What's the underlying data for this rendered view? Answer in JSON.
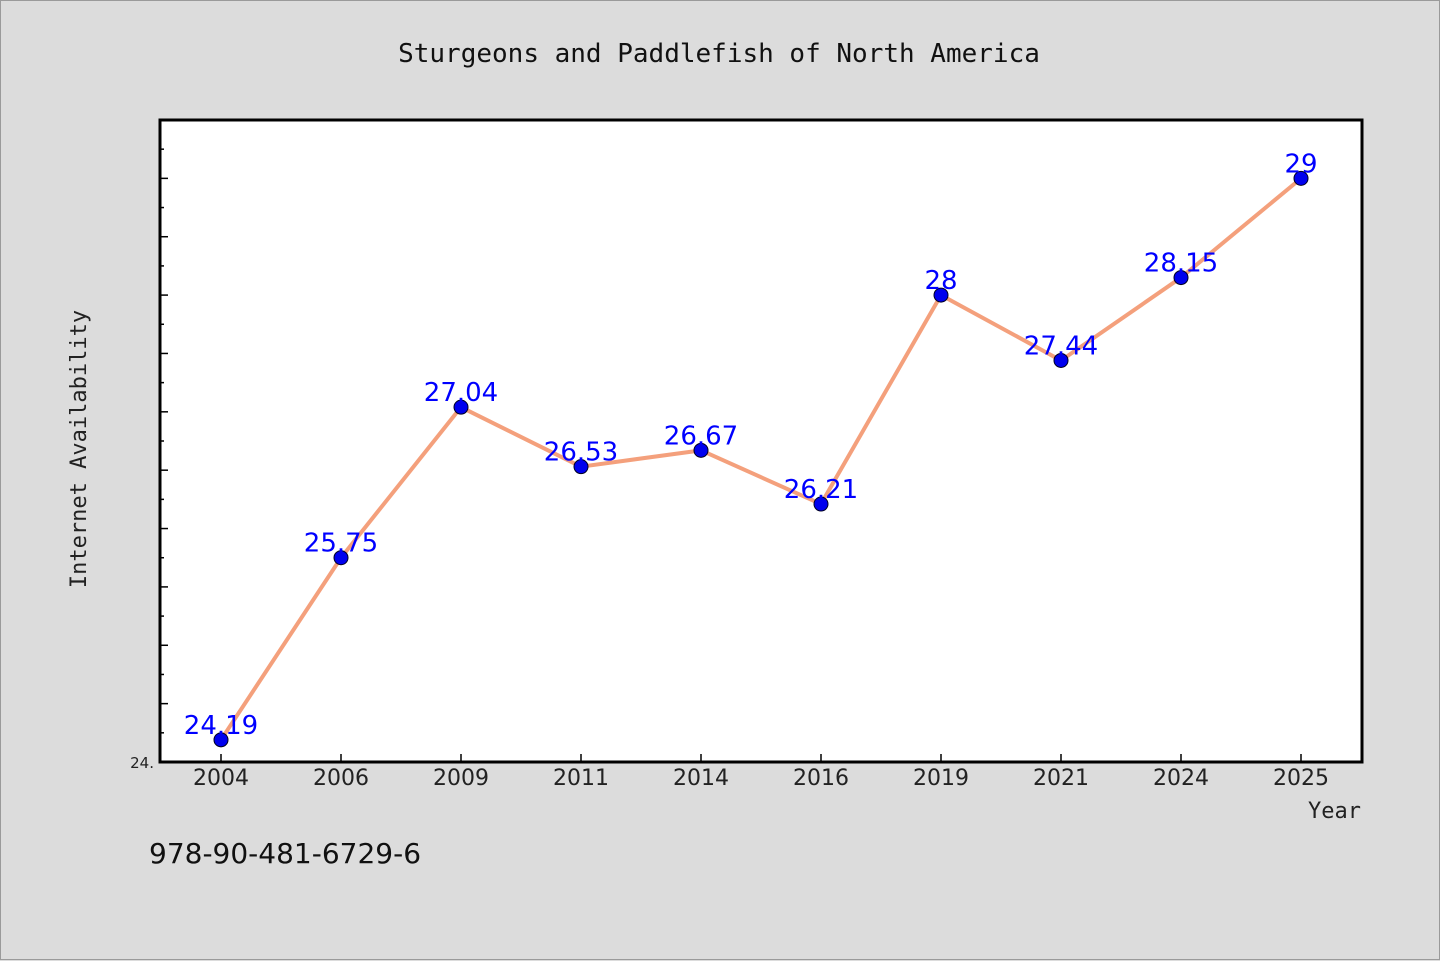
{
  "chart_data": {
    "type": "line",
    "title": "Sturgeons and Paddlefish of North America",
    "xlabel": "Year",
    "ylabel": "Internet Availability",
    "categories": [
      "2004",
      "2006",
      "2009",
      "2011",
      "2014",
      "2016",
      "2019",
      "2021",
      "2024",
      "2025"
    ],
    "series": [
      {
        "values": [
          24.19,
          25.75,
          27.04,
          26.53,
          26.67,
          26.21,
          28,
          27.44,
          28.15,
          29
        ],
        "data_labels": [
          "24.19",
          "25.75",
          "27.04",
          "26.53",
          "26.67",
          "26.21",
          "28",
          "27.44",
          "28.15",
          "29"
        ],
        "line_color": "#f4a07c",
        "marker_color": "#0000ee"
      }
    ],
    "ylim": [
      24,
      29.5
    ],
    "y_tick_label": "24.",
    "grid": false,
    "legend": "none"
  },
  "footer": {
    "isbn": "978-90-481-6729-6"
  }
}
